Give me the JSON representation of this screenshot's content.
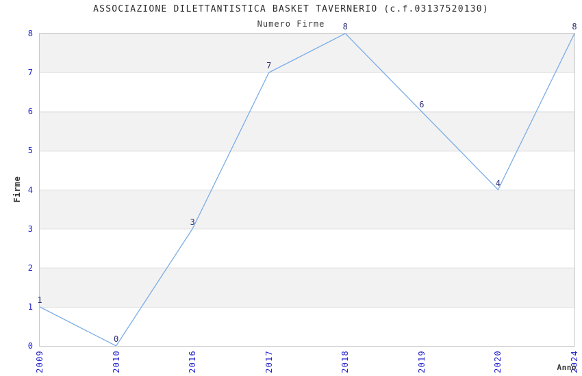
{
  "title": "ASSOCIAZIONE DILETTANTISTICA BASKET TAVERNERIO (c.f.03137520130)",
  "subtitle": "Numero Firme",
  "chart_data": {
    "type": "line",
    "x": [
      "2009",
      "2010",
      "2016",
      "2017",
      "2018",
      "2019",
      "2020",
      "2024"
    ],
    "values": [
      1,
      0,
      3,
      7,
      8,
      6,
      4,
      8
    ],
    "title": "ASSOCIAZIONE DILETTANTISTICA BASKET TAVERNERIO (c.f.03137520130)",
    "subtitle": "Numero Firme",
    "xlabel": "Anno",
    "ylabel": "Firme",
    "ylim": [
      0,
      8
    ],
    "yticks": [
      0,
      1,
      2,
      3,
      4,
      5,
      6,
      7,
      8
    ],
    "x_tick_rotation": 90,
    "data_labels_shown": true,
    "legend": "none",
    "grid": "horizontal gridlines with alternating gray/white bands",
    "colors": {
      "line": "#7bade6",
      "tick_labels": "#2222cc",
      "point_labels": "#30307a",
      "band_fill": "#f2f2f2",
      "gridline": "#e3e3e3",
      "plot_border": "#c9c9c9",
      "title_text": "#2b2b2b",
      "background": "#ffffff"
    }
  }
}
